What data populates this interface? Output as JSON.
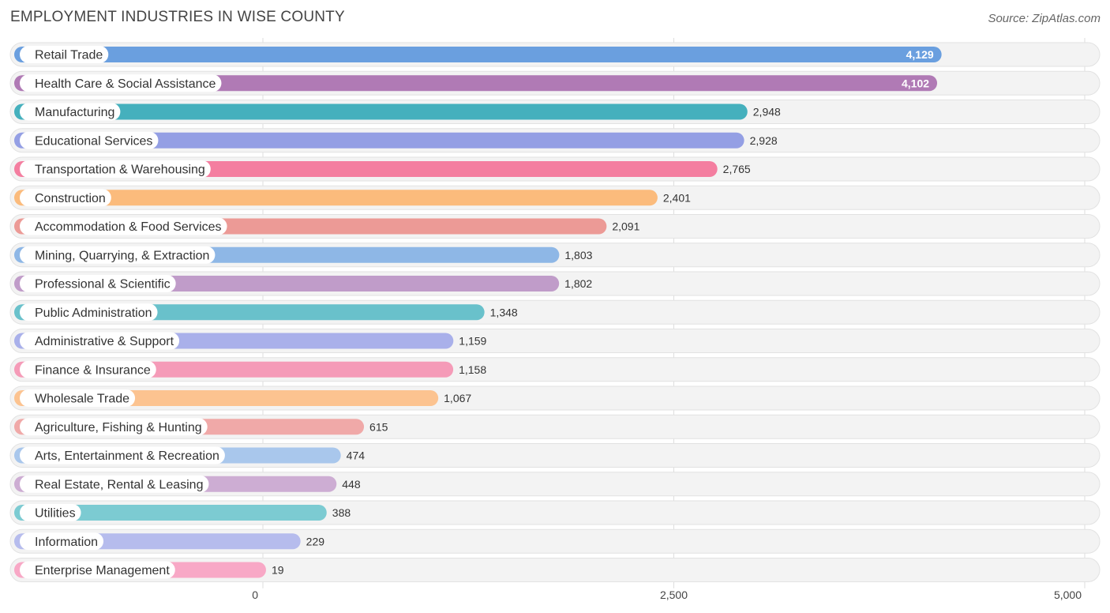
{
  "chart_data": {
    "type": "bar",
    "orientation": "horizontal",
    "title": "EMPLOYMENT INDUSTRIES IN WISE COUNTY",
    "source": "Source: ZipAtlas.com",
    "xlim": [
      0,
      5000
    ],
    "ticks": [
      0,
      2500,
      5000
    ],
    "tick_labels": [
      "0",
      "2,500",
      "5,000"
    ],
    "categories": [
      "Retail Trade",
      "Health Care & Social Assistance",
      "Manufacturing",
      "Educational Services",
      "Transportation & Warehousing",
      "Construction",
      "Accommodation & Food Services",
      "Mining, Quarrying, & Extraction",
      "Professional & Scientific",
      "Public Administration",
      "Administrative & Support",
      "Finance & Insurance",
      "Wholesale Trade",
      "Agriculture, Fishing & Hunting",
      "Arts, Entertainment & Recreation",
      "Real Estate, Rental & Leasing",
      "Utilities",
      "Information",
      "Enterprise Management"
    ],
    "values": [
      4129,
      4102,
      2948,
      2928,
      2765,
      2401,
      2091,
      1803,
      1802,
      1348,
      1159,
      1158,
      1067,
      615,
      474,
      448,
      388,
      229,
      19
    ],
    "value_labels": [
      "4,129",
      "4,102",
      "2,948",
      "2,928",
      "2,765",
      "2,401",
      "2,091",
      "1,803",
      "1,802",
      "1,348",
      "1,159",
      "1,158",
      "1,067",
      "615",
      "474",
      "448",
      "388",
      "229",
      "19"
    ],
    "colors": [
      "#6a9fdf",
      "#b07ab5",
      "#45b0bd",
      "#949fe4",
      "#f47ea0",
      "#fbbb7c",
      "#ec9a96",
      "#8eb7e6",
      "#c09cc9",
      "#69c1cb",
      "#a9b0ea",
      "#f59bb8",
      "#fcc390",
      "#f0a9a8",
      "#a9c7ec",
      "#cdadd3",
      "#7ccbd2",
      "#b6bced",
      "#f8a8c6"
    ]
  }
}
